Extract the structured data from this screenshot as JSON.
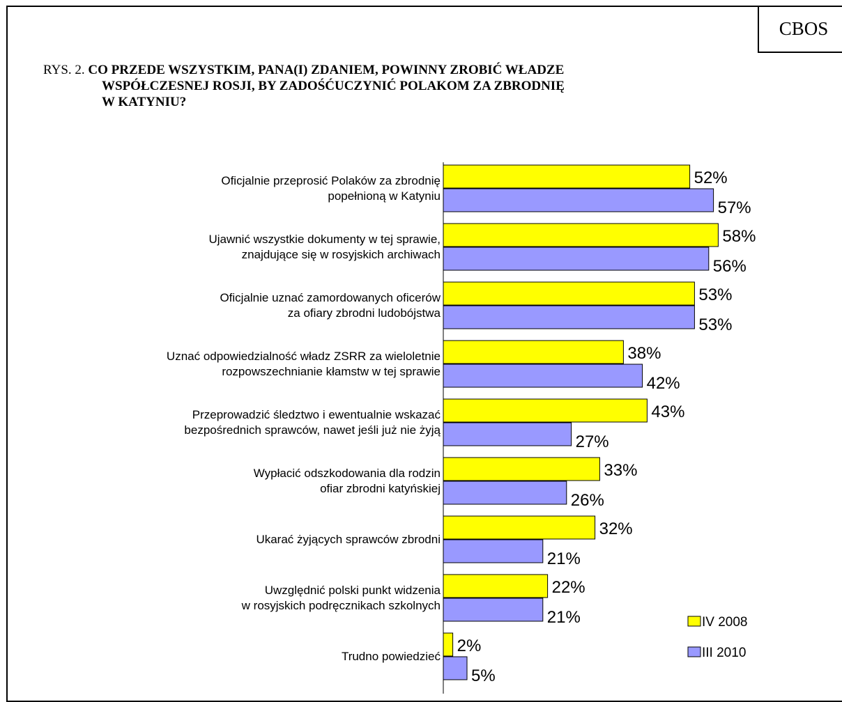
{
  "badge": "CBOS",
  "title": {
    "prefix": "RYS. 2.",
    "lines": [
      "CO PRZEDE WSZYSTKIM, PANA(I) ZDANIEM, POWINNY ZROBIĆ WŁADZE",
      "WSPÓŁCZESNEJ ROSJI, BY ZADOŚĆUCZYNIĆ POLAKOM ZA ZBRODNIĘ",
      "W KATYNIU?"
    ]
  },
  "chart_data": {
    "type": "bar",
    "orientation": "horizontal",
    "categories": [
      [
        "Oficjalnie przeprosić Polaków za zbrodnię",
        "popełnioną w Katyniu"
      ],
      [
        "Ujawnić wszystkie dokumenty w tej sprawie,",
        "znajdujące się w rosyjskich archiwach"
      ],
      [
        "Oficjalnie uznać zamordowanych oficerów",
        "za ofiary zbrodni ludobójstwa"
      ],
      [
        "Uznać odpowiedzialność władz ZSRR za wieloletnie",
        "rozpowszechnianie kłamstw w tej sprawie"
      ],
      [
        "Przeprowadzić śledztwo i ewentualnie wskazać",
        "bezpośrednich sprawców, nawet jeśli już nie żyją"
      ],
      [
        "Wypłacić odszkodowania dla rodzin",
        "ofiar zbrodni katyńskiej"
      ],
      [
        "Ukarać żyjących sprawców zbrodni"
      ],
      [
        "Uwzględnić polski punkt widzenia",
        "w rosyjskich podręcznikach szkolnych"
      ],
      [
        "Trudno powiedzieć"
      ]
    ],
    "series": [
      {
        "name": "IV 2008",
        "color": "#FFFF00",
        "values": [
          52,
          58,
          53,
          38,
          43,
          33,
          32,
          22,
          2
        ],
        "labels": [
          "52%",
          "58%",
          "53%",
          "38%",
          "43%",
          "33%",
          "32%",
          "22%",
          "2%"
        ]
      },
      {
        "name": "III 2010",
        "color": "#9999FF",
        "values": [
          57,
          56,
          53,
          42,
          27,
          26,
          21,
          21,
          5
        ],
        "labels": [
          "57%",
          "56%",
          "53%",
          "42%",
          "27%",
          "26%",
          "21%",
          "21%",
          "5%"
        ]
      }
    ],
    "unit": "%",
    "legend_position": "bottom-right",
    "grid": false
  }
}
